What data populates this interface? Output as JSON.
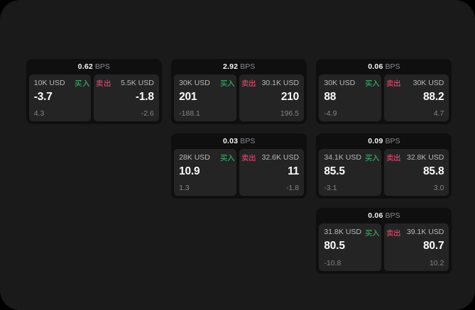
{
  "app": {
    "unit_label": "BPS"
  },
  "labels": {
    "buy": "买入",
    "sell": "卖出"
  },
  "colors": {
    "background": "#000000",
    "panel": "#1a1a1b",
    "card": "#0f0f10",
    "tile": "#242425",
    "text_primary": "#f5f5f7",
    "text_secondary": "#b9b9bd",
    "text_muted": "#85858a",
    "buy_green": "#3aa763",
    "sell_red": "#d04a68"
  },
  "cards": [
    {
      "grid": {
        "row": 1,
        "col": 1
      },
      "bps": "0.62",
      "buy": {
        "size": "10K USD",
        "value": "-3.7",
        "delta": "4.3"
      },
      "sell": {
        "size": "5.5K USD",
        "value": "-1.8",
        "delta": "-2.6"
      }
    },
    {
      "grid": {
        "row": 1,
        "col": 2
      },
      "bps": "2.92",
      "buy": {
        "size": "30K USD",
        "value": "201",
        "delta": "-188.1"
      },
      "sell": {
        "size": "30.1K USD",
        "value": "210",
        "delta": "196.5"
      }
    },
    {
      "grid": {
        "row": 1,
        "col": 3
      },
      "bps": "0.06",
      "buy": {
        "size": "30K USD",
        "value": "88",
        "delta": "-4.9"
      },
      "sell": {
        "size": "30K USD",
        "value": "88.2",
        "delta": "4.7"
      }
    },
    {
      "grid": {
        "row": 2,
        "col": 2
      },
      "bps": "0.03",
      "buy": {
        "size": "28K USD",
        "value": "10.9",
        "delta": "1.3"
      },
      "sell": {
        "size": "32.6K USD",
        "value": "11",
        "delta": "-1.8"
      }
    },
    {
      "grid": {
        "row": 2,
        "col": 3
      },
      "bps": "0.09",
      "buy": {
        "size": "34.1K USD",
        "value": "85.5",
        "delta": "-3.1"
      },
      "sell": {
        "size": "32.8K USD",
        "value": "85.8",
        "delta": "3.0"
      }
    },
    {
      "grid": {
        "row": 3,
        "col": 3
      },
      "bps": "0.06",
      "buy": {
        "size": "31.8K USD",
        "value": "80.5",
        "delta": "-10.8"
      },
      "sell": {
        "size": "39.1K USD",
        "value": "80.7",
        "delta": "10.2"
      }
    }
  ]
}
